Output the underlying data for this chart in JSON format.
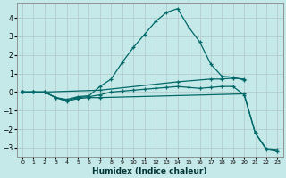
{
  "xlabel": "Humidex (Indice chaleur)",
  "bg_color": "#c5e8e8",
  "grid_color": "#b0c8c8",
  "line_color": "#006868",
  "xlim": [
    -0.5,
    23.5
  ],
  "ylim": [
    -3.5,
    4.8
  ],
  "xticks": [
    0,
    1,
    2,
    3,
    4,
    5,
    6,
    7,
    8,
    9,
    10,
    11,
    12,
    13,
    14,
    15,
    16,
    17,
    18,
    19,
    20,
    21,
    22,
    23
  ],
  "yticks": [
    -3,
    -2,
    -1,
    0,
    1,
    2,
    3,
    4
  ],
  "series": [
    {
      "x": [
        0,
        1,
        2,
        3,
        4,
        5,
        6,
        7,
        8,
        9,
        10,
        11,
        12,
        13,
        14,
        15,
        16,
        17,
        18,
        19,
        20
      ],
      "y": [
        0,
        0,
        0,
        -0.3,
        -0.4,
        -0.25,
        -0.2,
        0.3,
        0.7,
        1.6,
        2.4,
        3.1,
        3.8,
        4.3,
        4.5,
        3.5,
        2.7,
        1.5,
        0.85,
        0.8,
        0.65
      ]
    },
    {
      "x": [
        0,
        1,
        2,
        7,
        14,
        17,
        18,
        19,
        20
      ],
      "y": [
        0,
        0,
        0,
        0.1,
        0.55,
        0.7,
        0.7,
        0.75,
        0.7
      ]
    },
    {
      "x": [
        0,
        1,
        2,
        3,
        4,
        5,
        6,
        7,
        20,
        21,
        22,
        23
      ],
      "y": [
        0,
        0,
        0,
        -0.3,
        -0.5,
        -0.35,
        -0.3,
        -0.3,
        -0.1,
        -2.2,
        -3.1,
        -3.2
      ]
    },
    {
      "x": [
        0,
        1,
        2,
        3,
        4,
        5,
        6,
        7,
        8,
        9,
        10,
        11,
        12,
        13,
        14,
        15,
        16,
        17,
        18,
        19,
        20,
        21,
        22,
        23
      ],
      "y": [
        0,
        0,
        0,
        -0.3,
        -0.45,
        -0.3,
        -0.25,
        -0.15,
        0.0,
        0.05,
        0.1,
        0.15,
        0.2,
        0.25,
        0.3,
        0.25,
        0.2,
        0.25,
        0.3,
        0.3,
        -0.15,
        -2.2,
        -3.05,
        -3.1
      ]
    }
  ]
}
